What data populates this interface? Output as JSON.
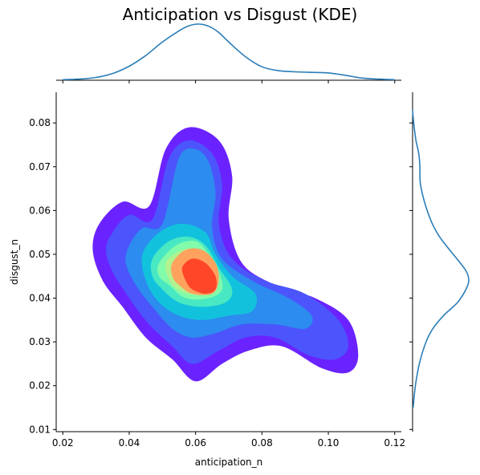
{
  "chart_data": {
    "type": "kde-joint",
    "title": "Anticipation vs Disgust (KDE)",
    "xlabel": "anticipation_n",
    "ylabel": "disgust_n",
    "xlim": [
      0.018,
      0.122
    ],
    "ylim": [
      0.0095,
      0.087
    ],
    "xticks": [
      "0.02",
      "0.04",
      "0.06",
      "0.08",
      "0.10",
      "0.12"
    ],
    "yticks": [
      "0.01",
      "0.02",
      "0.03",
      "0.04",
      "0.05",
      "0.06",
      "0.07",
      "0.08"
    ],
    "colormap": "rainbow",
    "levels": [
      {
        "color": "#6a23ff",
        "outline": [
          [
            0.031,
            0.057
          ],
          [
            0.038,
            0.062
          ],
          [
            0.046,
            0.061
          ],
          [
            0.051,
            0.074
          ],
          [
            0.058,
            0.079
          ],
          [
            0.067,
            0.076
          ],
          [
            0.071,
            0.068
          ],
          [
            0.07,
            0.058
          ],
          [
            0.074,
            0.048
          ],
          [
            0.084,
            0.043
          ],
          [
            0.096,
            0.04
          ],
          [
            0.106,
            0.035
          ],
          [
            0.109,
            0.027
          ],
          [
            0.106,
            0.023
          ],
          [
            0.098,
            0.024
          ],
          [
            0.086,
            0.029
          ],
          [
            0.076,
            0.028
          ],
          [
            0.068,
            0.025
          ],
          [
            0.06,
            0.021
          ],
          [
            0.053,
            0.026
          ],
          [
            0.045,
            0.031
          ],
          [
            0.038,
            0.038
          ],
          [
            0.032,
            0.044
          ],
          [
            0.029,
            0.051
          ]
        ]
      },
      {
        "color": "#4b55fb",
        "outline": [
          [
            0.035,
            0.055
          ],
          [
            0.04,
            0.059
          ],
          [
            0.047,
            0.058
          ],
          [
            0.052,
            0.072
          ],
          [
            0.058,
            0.076
          ],
          [
            0.065,
            0.073
          ],
          [
            0.068,
            0.066
          ],
          [
            0.067,
            0.057
          ],
          [
            0.071,
            0.049
          ],
          [
            0.081,
            0.044
          ],
          [
            0.093,
            0.041
          ],
          [
            0.103,
            0.035
          ],
          [
            0.106,
            0.029
          ],
          [
            0.102,
            0.026
          ],
          [
            0.094,
            0.027
          ],
          [
            0.084,
            0.031
          ],
          [
            0.075,
            0.031
          ],
          [
            0.067,
            0.028
          ],
          [
            0.059,
            0.025
          ],
          [
            0.053,
            0.029
          ],
          [
            0.046,
            0.034
          ],
          [
            0.04,
            0.04
          ],
          [
            0.035,
            0.046
          ],
          [
            0.033,
            0.051
          ]
        ]
      },
      {
        "color": "#2c8cef",
        "outline": [
          [
            0.04,
            0.052
          ],
          [
            0.044,
            0.056
          ],
          [
            0.05,
            0.057
          ],
          [
            0.055,
            0.072
          ],
          [
            0.06,
            0.074
          ],
          [
            0.064,
            0.071
          ],
          [
            0.066,
            0.064
          ],
          [
            0.065,
            0.056
          ],
          [
            0.068,
            0.049
          ],
          [
            0.077,
            0.044
          ],
          [
            0.088,
            0.04
          ],
          [
            0.095,
            0.036
          ],
          [
            0.093,
            0.033
          ],
          [
            0.084,
            0.034
          ],
          [
            0.074,
            0.034
          ],
          [
            0.066,
            0.032
          ],
          [
            0.059,
            0.031
          ],
          [
            0.053,
            0.033
          ],
          [
            0.047,
            0.038
          ],
          [
            0.042,
            0.043
          ],
          [
            0.039,
            0.048
          ]
        ]
      },
      {
        "color": "#12c2dd",
        "outline": [
          [
            0.044,
            0.05
          ],
          [
            0.049,
            0.055
          ],
          [
            0.056,
            0.057
          ],
          [
            0.063,
            0.055
          ],
          [
            0.066,
            0.05
          ],
          [
            0.071,
            0.045
          ],
          [
            0.078,
            0.041
          ],
          [
            0.077,
            0.037
          ],
          [
            0.07,
            0.036
          ],
          [
            0.062,
            0.035
          ],
          [
            0.055,
            0.036
          ],
          [
            0.049,
            0.039
          ],
          [
            0.045,
            0.044
          ]
        ]
      },
      {
        "color": "#48e8c2",
        "outline": [
          [
            0.047,
            0.049
          ],
          [
            0.052,
            0.053
          ],
          [
            0.058,
            0.054
          ],
          [
            0.063,
            0.052
          ],
          [
            0.067,
            0.047
          ],
          [
            0.071,
            0.042
          ],
          [
            0.069,
            0.039
          ],
          [
            0.062,
            0.038
          ],
          [
            0.055,
            0.039
          ],
          [
            0.05,
            0.042
          ],
          [
            0.047,
            0.045
          ]
        ]
      },
      {
        "color": "#82fbaa",
        "outline": [
          [
            0.049,
            0.048
          ],
          [
            0.054,
            0.052
          ],
          [
            0.06,
            0.053
          ],
          [
            0.064,
            0.05
          ],
          [
            0.067,
            0.046
          ],
          [
            0.068,
            0.042
          ],
          [
            0.064,
            0.04
          ],
          [
            0.057,
            0.04
          ],
          [
            0.052,
            0.043
          ],
          [
            0.049,
            0.045
          ]
        ]
      },
      {
        "color": "#b2f28e",
        "outline": [
          [
            0.051,
            0.048
          ],
          [
            0.056,
            0.051
          ],
          [
            0.061,
            0.051
          ],
          [
            0.065,
            0.048
          ],
          [
            0.066,
            0.044
          ],
          [
            0.063,
            0.041
          ],
          [
            0.058,
            0.041
          ],
          [
            0.053,
            0.043
          ]
        ]
      },
      {
        "color": "#ffa25e",
        "outline": [
          [
            0.053,
            0.048
          ],
          [
            0.057,
            0.051
          ],
          [
            0.062,
            0.051
          ],
          [
            0.066,
            0.048
          ],
          [
            0.067,
            0.044
          ],
          [
            0.065,
            0.041
          ],
          [
            0.059,
            0.041
          ],
          [
            0.055,
            0.043
          ],
          [
            0.053,
            0.045
          ]
        ]
      },
      {
        "color": "#ff4628",
        "outline": [
          [
            0.056,
            0.047
          ],
          [
            0.059,
            0.049
          ],
          [
            0.063,
            0.048
          ],
          [
            0.066,
            0.045
          ],
          [
            0.066,
            0.042
          ],
          [
            0.063,
            0.041
          ],
          [
            0.059,
            0.042
          ],
          [
            0.057,
            0.044
          ]
        ]
      }
    ],
    "marginal_x": {
      "x": [
        0.02,
        0.025,
        0.03,
        0.035,
        0.04,
        0.045,
        0.05,
        0.055,
        0.058,
        0.061,
        0.064,
        0.067,
        0.07,
        0.075,
        0.08,
        0.085,
        0.09,
        0.095,
        0.1,
        0.105,
        0.11,
        0.115,
        0.12
      ],
      "density": [
        0.01,
        0.02,
        0.05,
        0.12,
        0.25,
        0.44,
        0.68,
        0.88,
        0.97,
        1.0,
        0.96,
        0.85,
        0.68,
        0.42,
        0.24,
        0.17,
        0.15,
        0.14,
        0.13,
        0.09,
        0.04,
        0.02,
        0.01
      ]
    },
    "marginal_y": {
      "y": [
        0.015,
        0.02,
        0.025,
        0.03,
        0.033,
        0.036,
        0.039,
        0.042,
        0.044,
        0.046,
        0.048,
        0.051,
        0.054,
        0.057,
        0.06,
        0.063,
        0.066,
        0.068,
        0.07,
        0.073,
        0.076,
        0.08,
        0.083
      ],
      "density": [
        0.01,
        0.05,
        0.12,
        0.24,
        0.36,
        0.55,
        0.8,
        0.95,
        1.0,
        0.96,
        0.85,
        0.66,
        0.48,
        0.35,
        0.26,
        0.19,
        0.14,
        0.13,
        0.13,
        0.11,
        0.06,
        0.02,
        0.0
      ]
    },
    "line_color": "#2a7db8"
  }
}
